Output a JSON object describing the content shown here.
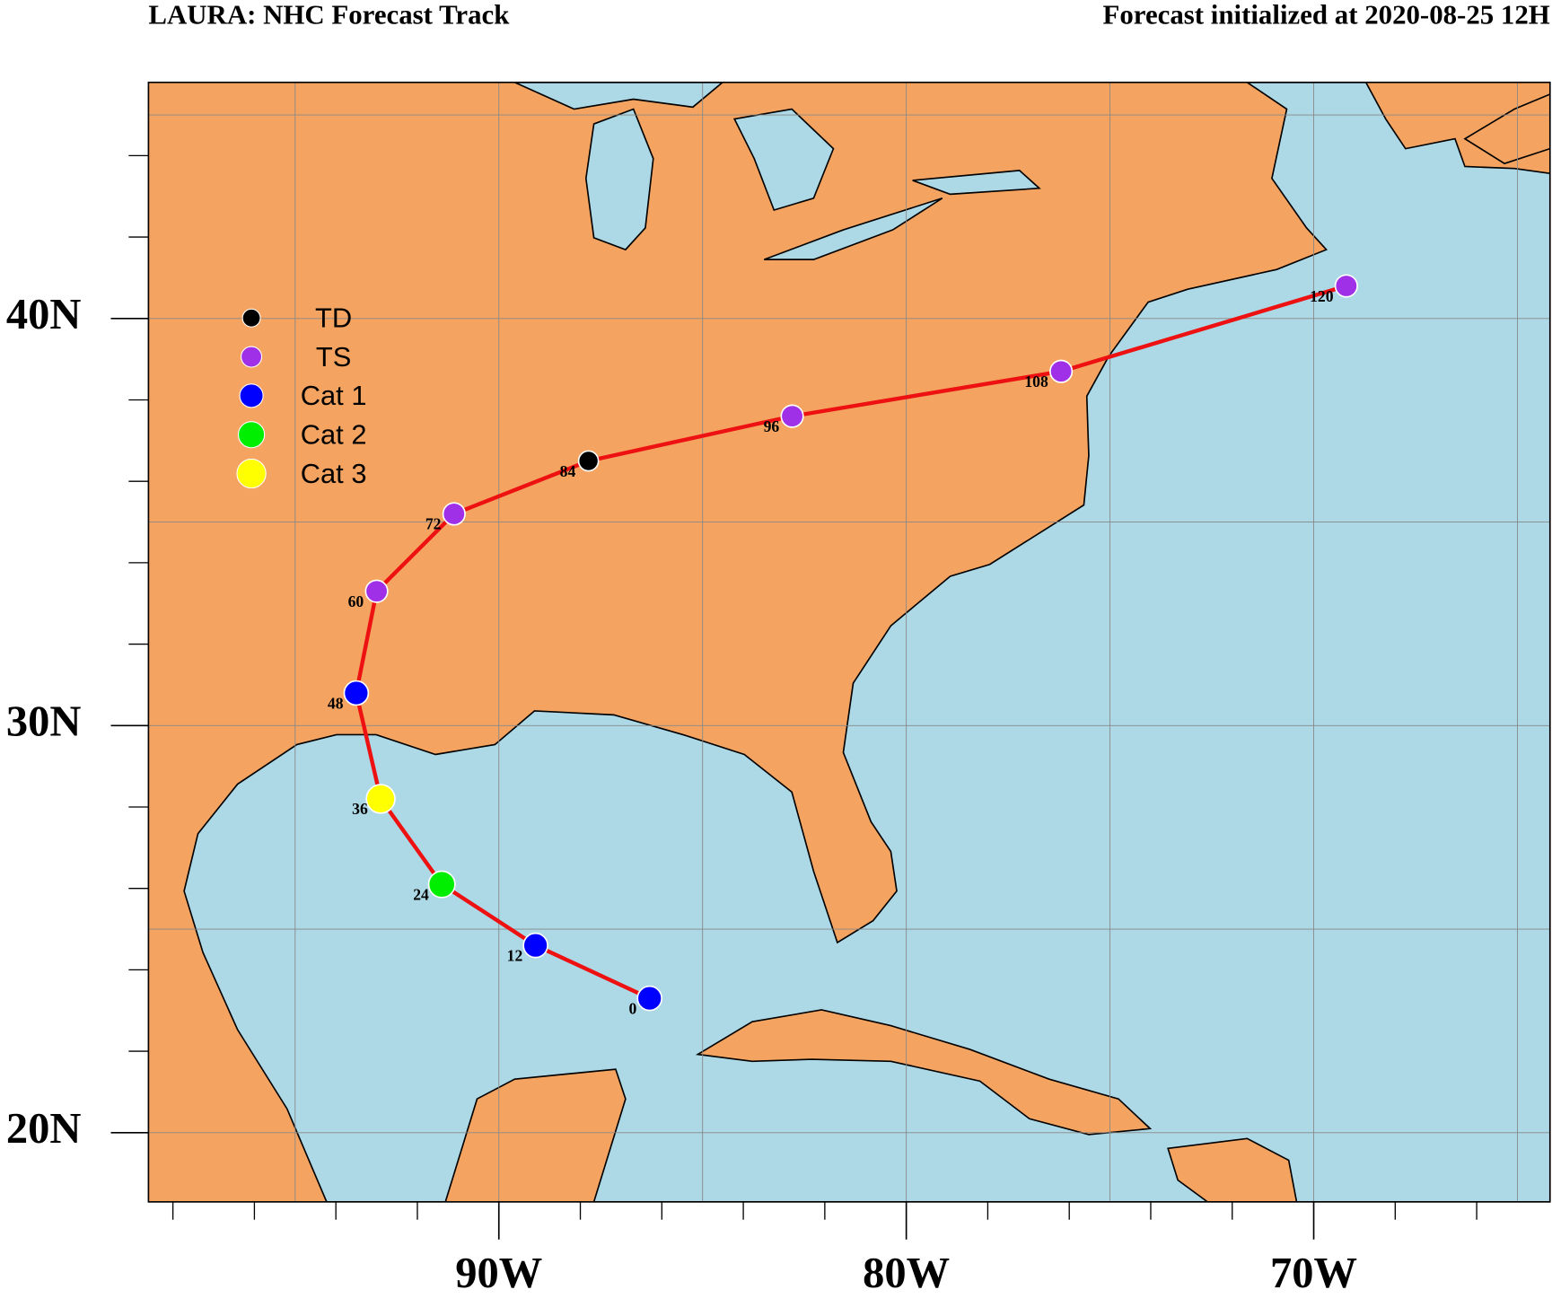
{
  "chart_data": {
    "type": "track",
    "title": "LAURA: NHC Forecast Track",
    "subtitle": "Forecast initialized at 2020-08-25 12H",
    "xlim": [
      -98.6,
      -64.2
    ],
    "ylim": [
      18.3,
      45.8
    ],
    "xticks": [
      {
        "value": -90,
        "label": "90W"
      },
      {
        "value": -80,
        "label": "80W"
      },
      {
        "value": -70,
        "label": "70W"
      }
    ],
    "yticks": [
      {
        "value": 20,
        "label": "20N"
      },
      {
        "value": 30,
        "label": "30N"
      },
      {
        "value": 40,
        "label": "40N"
      }
    ],
    "xminor": [
      -98,
      -96,
      -94,
      -92,
      -88,
      -86,
      -84,
      -82,
      -78,
      -76,
      -74,
      -72,
      -68,
      -66
    ],
    "yminor": [
      22,
      24,
      26,
      28,
      32,
      34,
      36,
      38,
      42,
      44
    ],
    "xgrid": [
      -95,
      -90,
      -85,
      -80,
      -75,
      -70,
      -65
    ],
    "ygrid": [
      20,
      25,
      30,
      35,
      40,
      45
    ],
    "track_color": "#ee1111",
    "legend": [
      {
        "name": "TD",
        "color": "#000000"
      },
      {
        "name": "TS",
        "color": "#a030e8"
      },
      {
        "name": "Cat 1",
        "color": "#0000ff"
      },
      {
        "name": "Cat 2",
        "color": "#00ee00"
      },
      {
        "name": "Cat 3",
        "color": "#ffff00"
      }
    ],
    "track": {
      "hours": [
        0,
        12,
        24,
        36,
        48,
        60,
        72,
        84,
        96,
        108,
        120
      ],
      "lon": [
        -86.3,
        -89.1,
        -91.4,
        -92.9,
        -93.5,
        -93.0,
        -91.1,
        -87.8,
        -82.8,
        -76.2,
        -69.2
      ],
      "lat": [
        23.3,
        24.6,
        26.1,
        28.2,
        30.8,
        33.3,
        35.2,
        36.5,
        37.6,
        38.7,
        40.8
      ],
      "category": [
        "Cat 1",
        "Cat 1",
        "Cat 2",
        "Cat 3",
        "Cat 1",
        "TS",
        "TS",
        "TD",
        "TS",
        "TS",
        "TS"
      ]
    }
  }
}
